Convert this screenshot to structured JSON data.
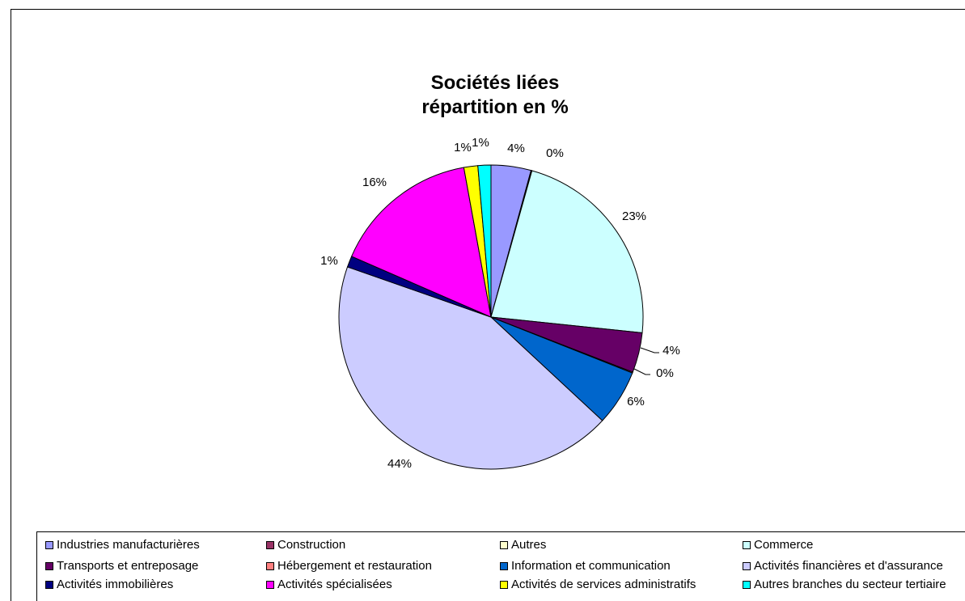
{
  "chart_data": {
    "type": "pie",
    "title_lines": [
      "Sociétés liées",
      "répartition en %"
    ],
    "slices": [
      {
        "name": "Industries manufacturières",
        "value": 4.3,
        "label": "4%",
        "color": "#9999ff"
      },
      {
        "name": "Construction",
        "value": 0.05,
        "label": "0%",
        "color": "#993366"
      },
      {
        "name": "Autres",
        "value": 0.05,
        "label": "",
        "color": "#ffffcc"
      },
      {
        "name": "Commerce",
        "value": 22.6,
        "label": "23%",
        "color": "#ccffff"
      },
      {
        "name": "Transports et entreposage",
        "value": 4.3,
        "label": "4%",
        "color": "#660066"
      },
      {
        "name": "Hébergement et restauration",
        "value": 0.1,
        "label": "0%",
        "color": "#ff8080"
      },
      {
        "name": "Information et communication",
        "value": 6.0,
        "label": "6%",
        "color": "#0066cc"
      },
      {
        "name": "Activités financières et d'assurance",
        "value": 44.0,
        "label": "44%",
        "color": "#ccccff"
      },
      {
        "name": "Activités immobilières",
        "value": 1.2,
        "label": "1%",
        "color": "#000080"
      },
      {
        "name": "Activités spécialisées",
        "value": 15.8,
        "label": "16%",
        "color": "#ff00ff"
      },
      {
        "name": "Activités de services administratifs",
        "value": 1.5,
        "label": "1%",
        "color": "#ffff00"
      },
      {
        "name": "Autres branches du secteur tertiaire",
        "value": 1.4,
        "label": "1%",
        "color": "#00ffff"
      }
    ],
    "legend": {
      "placement": "bottom",
      "rows": [
        [
          "Industries manufacturières",
          "Construction",
          "Autres",
          "Commerce"
        ],
        [
          "Transports et entreposage",
          "Hébergement et restauration",
          "Information et communication",
          "Activités financières et d'assurance"
        ],
        [
          "Activités immobilières",
          "Activités spécialisées",
          "Activités de services administratifs",
          "Autres branches du secteur tertiaire"
        ]
      ]
    }
  }
}
